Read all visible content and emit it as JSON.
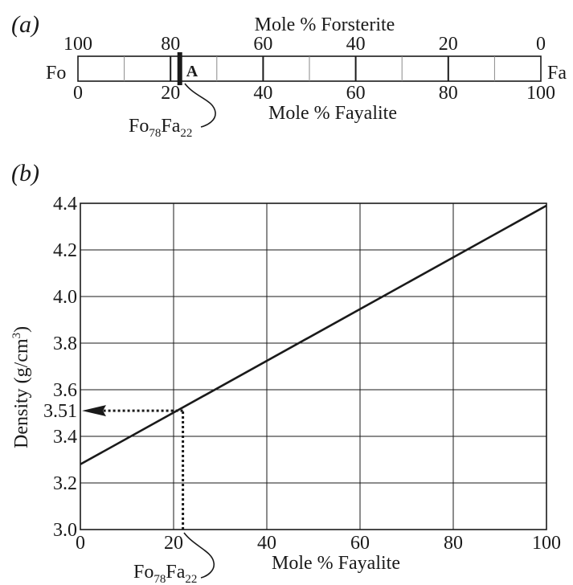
{
  "chart_data": [
    {
      "panel_label": "(a)",
      "type": "scale",
      "top_axis": {
        "title": "Mole % Forsterite",
        "ticks": [
          "100",
          "80",
          "60",
          "40",
          "20",
          "0"
        ]
      },
      "bottom_axis": {
        "title": "Mole % Fayalite",
        "ticks": [
          "0",
          "20",
          "40",
          "60",
          "80",
          "100"
        ]
      },
      "left_end": "Fo",
      "right_end": "Fa",
      "major_every": 20,
      "minor_every": 10,
      "marker": {
        "label": "A",
        "fayalite": 22
      },
      "callout": {
        "base": "Fo",
        "sub1": "78",
        "mid": "Fa",
        "sub2": "22"
      }
    },
    {
      "panel_label": "(b)",
      "type": "line",
      "xlabel": "Mole % Fayalite",
      "ylabel": "Density (g/cm",
      "ylabel_sup": "3",
      "ylabel_end": ")",
      "xlim": [
        0,
        100
      ],
      "ylim": [
        3.0,
        4.4
      ],
      "x_ticks": [
        "0",
        "20",
        "40",
        "60",
        "80",
        "100"
      ],
      "y_ticks": [
        "3.0",
        "3.2",
        "3.4",
        "3.6",
        "3.8",
        "4.0",
        "4.2",
        "4.4"
      ],
      "grid": true,
      "series": [
        {
          "x": [
            0,
            100
          ],
          "y": [
            3.28,
            4.39
          ]
        }
      ],
      "readout": {
        "x": 22,
        "y": 3.51,
        "label": "3.51"
      },
      "callout": {
        "base": "Fo",
        "sub1": "78",
        "mid": "Fa",
        "sub2": "22"
      }
    }
  ]
}
